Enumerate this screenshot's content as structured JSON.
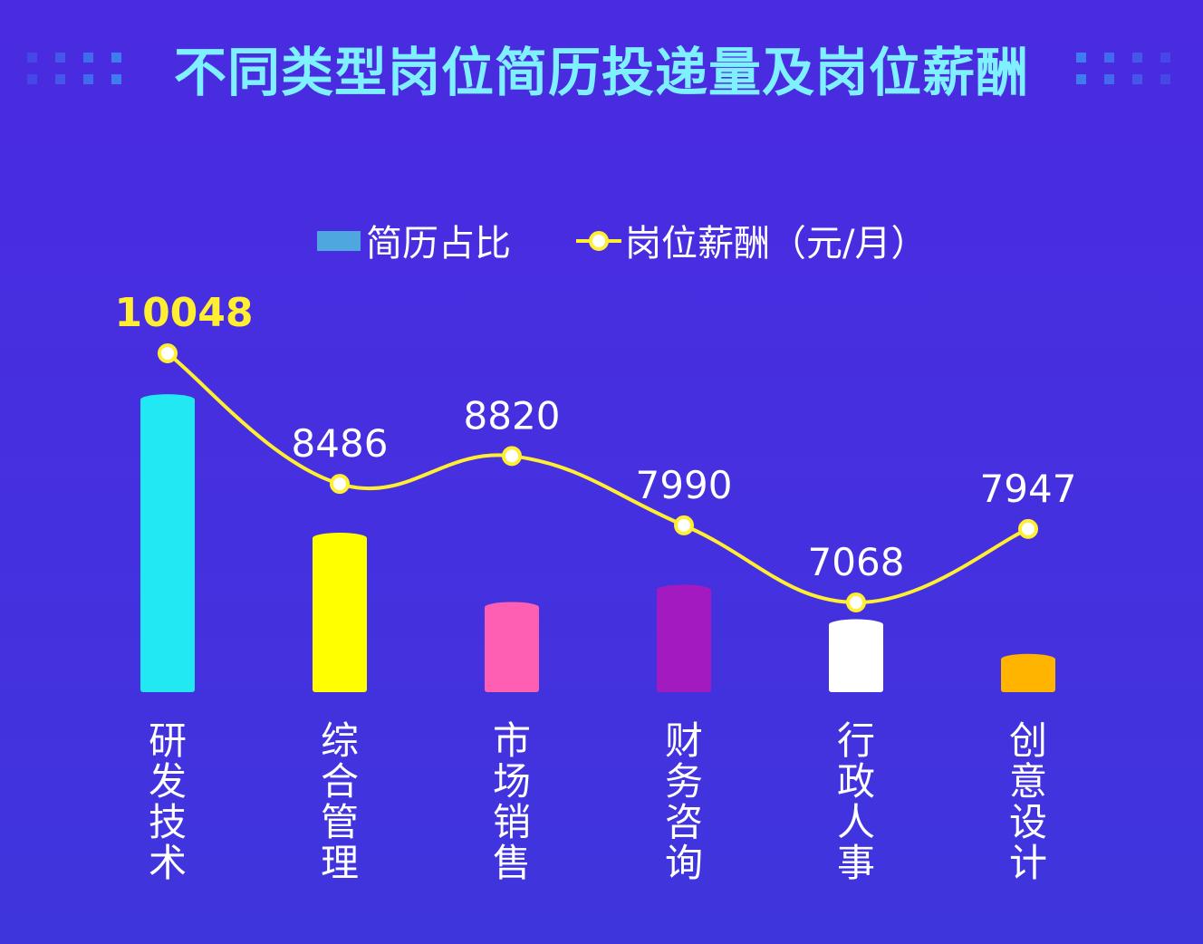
{
  "colors": {
    "title": "#7ff0ff",
    "line": "#ffee32",
    "legend_bar": "#4fa7e0",
    "axis_label": "#ffffff",
    "first_label": "#ffee32",
    "bar_colors": [
      "#22e8f4",
      "#ffff00",
      "#ff5fb3",
      "#a31bc0",
      "#ffffff",
      "#ffb400"
    ]
  },
  "header": {
    "title": "不同类型岗位简历投递量及岗位薪酬",
    "decor_icon": "dot-grid-icon"
  },
  "chart_data": {
    "type": "bar",
    "title": "不同类型岗位简历投递量及岗位薪酬",
    "legend_position": "top-center",
    "categories": [
      "研发技术",
      "综合管理",
      "市场销售",
      "财务咨询",
      "行政人事",
      "创意设计"
    ],
    "series": [
      {
        "name": "简历占比",
        "type": "bar",
        "values": [
          34,
          18,
          10,
          12,
          8,
          4
        ],
        "unit": "relative"
      },
      {
        "name": "岗位薪酬（元/月）",
        "type": "line",
        "values": [
          10048,
          8486,
          8820,
          7990,
          7068,
          7947
        ],
        "labels": [
          "10048",
          "8486",
          "8820",
          "7990",
          "7068",
          "7947"
        ]
      }
    ],
    "bar_ylim": [
      0,
      36
    ],
    "line_ylim": [
      6500,
      10600
    ],
    "grid": false
  }
}
